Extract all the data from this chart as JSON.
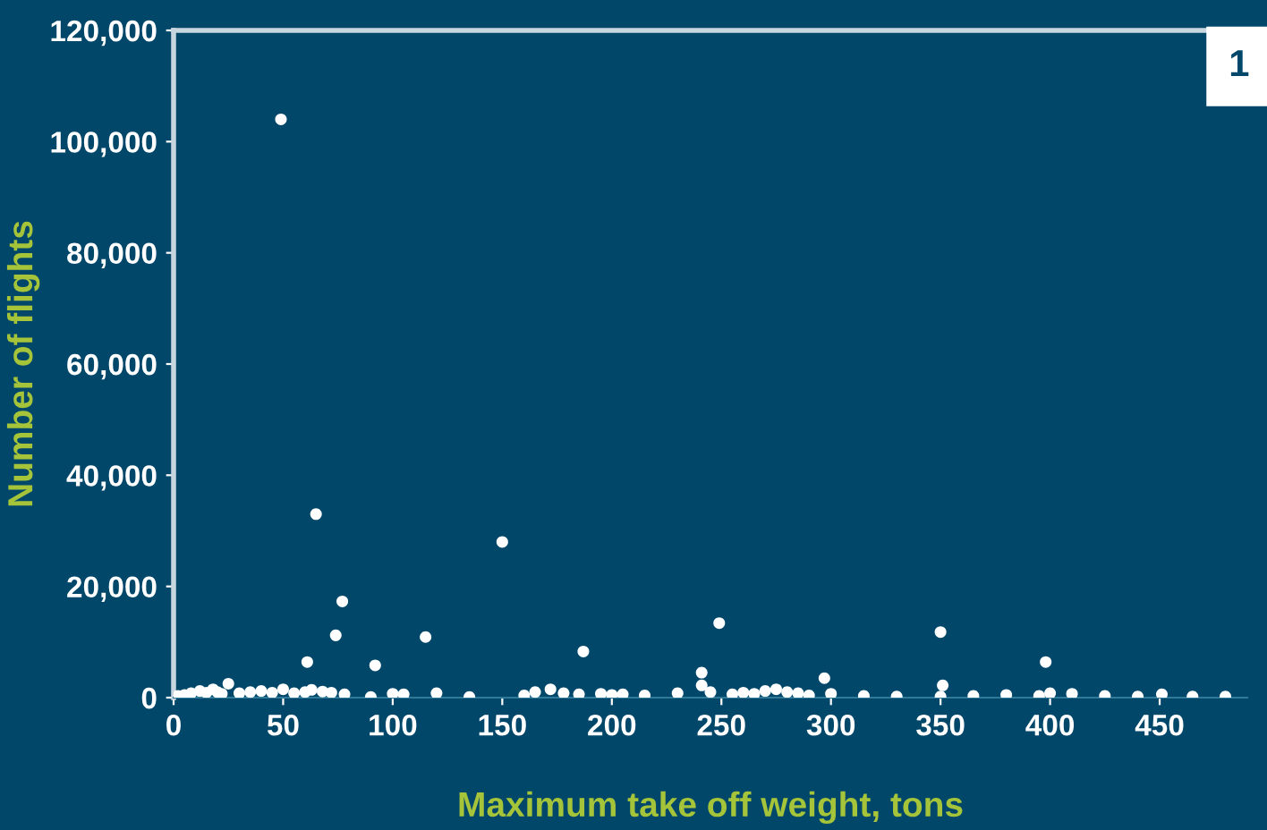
{
  "chart_data": {
    "type": "scatter",
    "xlabel": "Maximum take off weight, tons",
    "ylabel": "Number of flights",
    "annotations": [
      "1"
    ],
    "series": [
      {
        "color": "#ffffff",
        "x": [
          49,
          150,
          249,
          350,
          65,
          77,
          74,
          115,
          92,
          61,
          187,
          398,
          241,
          241,
          297,
          351,
          451,
          2,
          5,
          8,
          12,
          15,
          18,
          20,
          22,
          25,
          30,
          35,
          40,
          45,
          50,
          55,
          60,
          63,
          68,
          72,
          78,
          90,
          100,
          105,
          120,
          135,
          160,
          165,
          172,
          178,
          185,
          195,
          200,
          205,
          215,
          230,
          245,
          255,
          260,
          265,
          270,
          275,
          280,
          285,
          290,
          300,
          315,
          330,
          350,
          365,
          380,
          395,
          400,
          410,
          425,
          440,
          465,
          480
        ],
        "values": [
          104000,
          28000,
          13400,
          11800,
          33000,
          17300,
          11200,
          10900,
          5800,
          6400,
          8300,
          6400,
          4500,
          2200,
          3500,
          2200,
          600,
          300,
          500,
          800,
          1200,
          900,
          1500,
          1000,
          700,
          2500,
          800,
          1000,
          1200,
          900,
          1500,
          800,
          1000,
          1400,
          1100,
          900,
          600,
          100,
          700,
          600,
          800,
          100,
          400,
          1000,
          1500,
          800,
          600,
          700,
          500,
          600,
          400,
          800,
          1000,
          600,
          900,
          700,
          1200,
          1500,
          1000,
          800,
          400,
          700,
          300,
          200,
          200,
          300,
          500,
          300,
          800,
          700,
          300,
          200,
          200,
          200
        ]
      }
    ],
    "xlim": [
      0,
      490
    ],
    "xticks": [
      0,
      50,
      100,
      150,
      200,
      250,
      300,
      350,
      400,
      450
    ],
    "ylim": [
      0,
      120000
    ],
    "yticks": [
      {
        "value": 0,
        "label": "0"
      },
      {
        "value": 20000,
        "label": "20,000"
      },
      {
        "value": 40000,
        "label": "40,000"
      },
      {
        "value": 60000,
        "label": "60,000"
      },
      {
        "value": 80000,
        "label": "80,000"
      },
      {
        "value": 100000,
        "label": "100,000"
      },
      {
        "value": 120000,
        "label": "120,000"
      }
    ],
    "marker": "circle",
    "grid": false,
    "legend": false
  }
}
